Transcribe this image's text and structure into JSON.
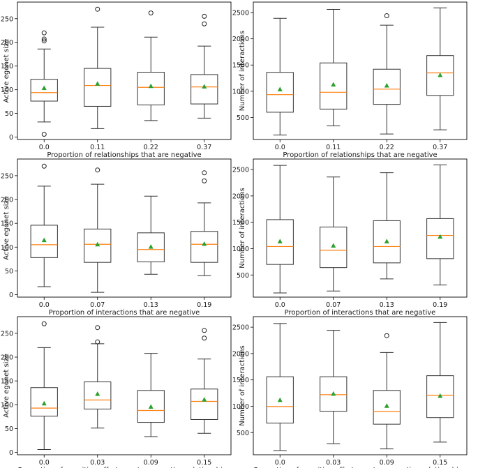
{
  "chart_data": [
    {
      "type": "box",
      "xlabel": "Proportion of relationships that are negative",
      "ylabel": "Active egonet size",
      "categories": [
        "0.0",
        "0.11",
        "0.22",
        "0.37"
      ],
      "ylim": [
        -5,
        285
      ],
      "yticks": [
        0,
        50,
        100,
        150,
        200,
        250
      ],
      "boxes": [
        {
          "whislo": 32,
          "q1": 76,
          "med": 94,
          "q3": 122,
          "whishi": 186,
          "mean": 104,
          "fliers": [
            6,
            203,
            207,
            220
          ]
        },
        {
          "whislo": 18,
          "q1": 65,
          "med": 109,
          "q3": 145,
          "whishi": 232,
          "mean": 113,
          "fliers": [
            270
          ]
        },
        {
          "whislo": 35,
          "q1": 68,
          "med": 105,
          "q3": 137,
          "whishi": 211,
          "mean": 108,
          "fliers": [
            262
          ]
        },
        {
          "whislo": 40,
          "q1": 70,
          "med": 106,
          "q3": 132,
          "whishi": 192,
          "mean": 107,
          "fliers": [
            239,
            255
          ]
        }
      ]
    },
    {
      "type": "box",
      "xlabel": "Proportion of relationships that are negative",
      "ylabel": "Number of interactions",
      "categories": [
        "0.0",
        "0.11",
        "0.22",
        "0.37"
      ],
      "ylim": [
        80,
        2700
      ],
      "yticks": [
        500,
        1000,
        1500,
        2000,
        2500
      ],
      "boxes": [
        {
          "whislo": 165,
          "q1": 600,
          "med": 935,
          "q3": 1360,
          "whishi": 2390,
          "mean": 1040,
          "fliers": []
        },
        {
          "whislo": 340,
          "q1": 660,
          "med": 980,
          "q3": 1540,
          "whishi": 2560,
          "mean": 1130,
          "fliers": []
        },
        {
          "whislo": 185,
          "q1": 750,
          "med": 1040,
          "q3": 1420,
          "whishi": 2260,
          "mean": 1110,
          "fliers": [
            2440
          ]
        },
        {
          "whislo": 265,
          "q1": 920,
          "med": 1350,
          "q3": 1680,
          "whishi": 2590,
          "mean": 1310,
          "fliers": []
        }
      ]
    },
    {
      "type": "box",
      "xlabel": "Proportion of interactions that are negative",
      "ylabel": "Active egonet size",
      "categories": [
        "0.0",
        "0.07",
        "0.13",
        "0.19"
      ],
      "ylim": [
        -5,
        285
      ],
      "yticks": [
        0,
        50,
        100,
        150,
        200,
        250
      ],
      "boxes": [
        {
          "whislo": 17,
          "q1": 78,
          "med": 105,
          "q3": 146,
          "whishi": 228,
          "mean": 115,
          "fliers": [
            270
          ]
        },
        {
          "whislo": 5,
          "q1": 68,
          "med": 106,
          "q3": 138,
          "whishi": 232,
          "mean": 106,
          "fliers": [
            262
          ]
        },
        {
          "whislo": 43,
          "q1": 69,
          "med": 95,
          "q3": 130,
          "whishi": 207,
          "mean": 101,
          "fliers": []
        },
        {
          "whislo": 40,
          "q1": 68,
          "med": 106,
          "q3": 133,
          "whishi": 193,
          "mean": 107,
          "fliers": [
            239,
            256
          ]
        }
      ]
    },
    {
      "type": "box",
      "xlabel": "Proportion of interactions that are negative",
      "ylabel": "Number of interactions",
      "categories": [
        "0.0",
        "0.07",
        "0.13",
        "0.19"
      ],
      "ylim": [
        80,
        2700
      ],
      "yticks": [
        500,
        1000,
        1500,
        2000,
        2500
      ],
      "boxes": [
        {
          "whislo": 160,
          "q1": 700,
          "med": 1040,
          "q3": 1550,
          "whishi": 2580,
          "mean": 1140,
          "fliers": []
        },
        {
          "whislo": 195,
          "q1": 640,
          "med": 970,
          "q3": 1410,
          "whishi": 2360,
          "mean": 1060,
          "fliers": []
        },
        {
          "whislo": 425,
          "q1": 730,
          "med": 1040,
          "q3": 1530,
          "whishi": 2440,
          "mean": 1140,
          "fliers": []
        },
        {
          "whislo": 310,
          "q1": 810,
          "med": 1250,
          "q3": 1570,
          "whishi": 2590,
          "mean": 1230,
          "fliers": []
        }
      ]
    },
    {
      "type": "box",
      "xlabel": "Proportion of cognitive effort spent on negative relationships",
      "ylabel": "Active egonet size",
      "categories": [
        "0.0",
        "0.03",
        "0.09",
        "0.15"
      ],
      "ylim": [
        -5,
        285
      ],
      "yticks": [
        0,
        50,
        100,
        150,
        200,
        250
      ],
      "boxes": [
        {
          "whislo": 6,
          "q1": 76,
          "med": 93,
          "q3": 136,
          "whishi": 220,
          "mean": 103,
          "fliers": [
            270
          ]
        },
        {
          "whislo": 51,
          "q1": 91,
          "med": 110,
          "q3": 148,
          "whishi": 228,
          "mean": 123,
          "fliers": [
            232,
            262
          ]
        },
        {
          "whislo": 33,
          "q1": 63,
          "med": 88,
          "q3": 130,
          "whishi": 208,
          "mean": 96,
          "fliers": []
        },
        {
          "whislo": 40,
          "q1": 69,
          "med": 107,
          "q3": 133,
          "whishi": 196,
          "mean": 111,
          "fliers": [
            240,
            256
          ]
        }
      ]
    },
    {
      "type": "box",
      "xlabel": "Proportion of cognitive effort spent on negative relationships",
      "ylabel": "Number of interactions",
      "categories": [
        "0.0",
        "0.03",
        "0.09",
        "0.15"
      ],
      "ylim": [
        80,
        2700
      ],
      "yticks": [
        500,
        1000,
        1500,
        2000,
        2500
      ],
      "boxes": [
        {
          "whislo": 160,
          "q1": 680,
          "med": 995,
          "q3": 1560,
          "whishi": 2570,
          "mean": 1120,
          "fliers": []
        },
        {
          "whislo": 290,
          "q1": 905,
          "med": 1220,
          "q3": 1560,
          "whishi": 2440,
          "mean": 1240,
          "fliers": []
        },
        {
          "whislo": 190,
          "q1": 660,
          "med": 900,
          "q3": 1300,
          "whishi": 2020,
          "mean": 1010,
          "fliers": [
            2340
          ]
        },
        {
          "whislo": 320,
          "q1": 785,
          "med": 1210,
          "q3": 1580,
          "whishi": 2590,
          "mean": 1200,
          "fliers": []
        }
      ]
    }
  ],
  "colors": {
    "box_edge": "#333333",
    "median": "#ff7f0e",
    "mean_marker": "#2ca02c",
    "axes": "#000000"
  }
}
